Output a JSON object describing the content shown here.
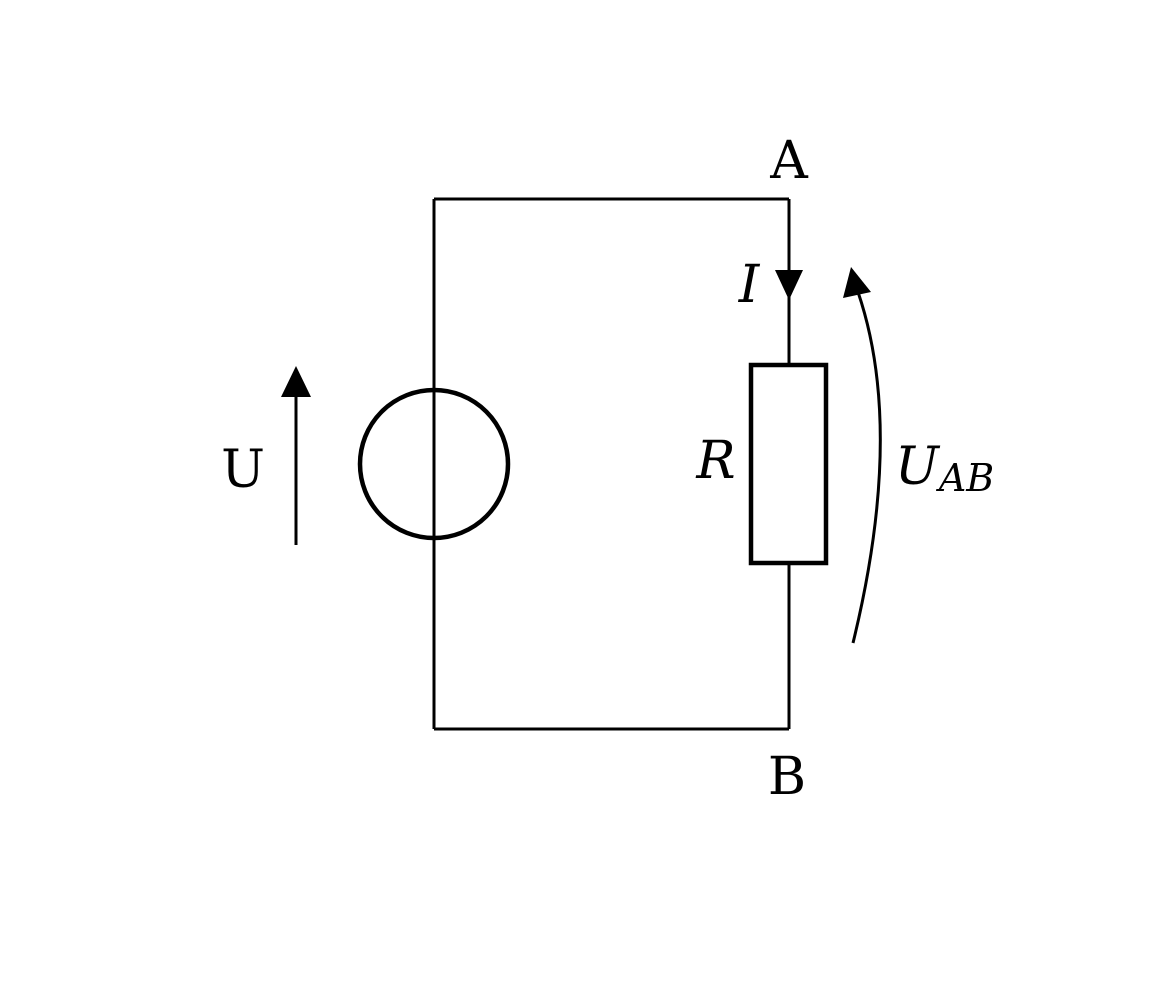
{
  "labels": {
    "node_a": "A",
    "node_b": "B",
    "source_voltage": "U",
    "current": "I",
    "resistor": "R",
    "voltage_main": "U",
    "voltage_sub": "AB"
  },
  "colors": {
    "line": "#000000",
    "background": "#ffffff"
  }
}
